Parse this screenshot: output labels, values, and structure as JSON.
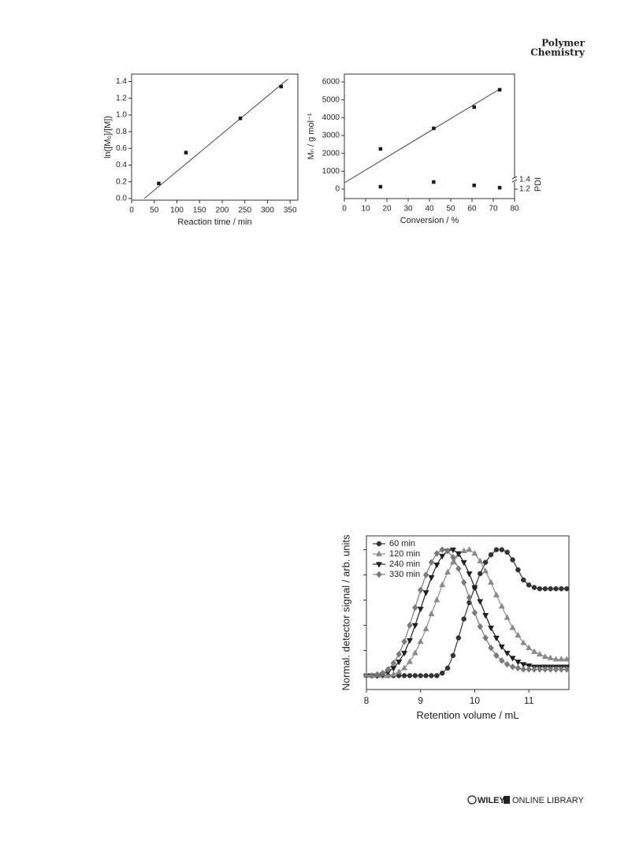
{
  "header": {
    "journal_line1": "Polymer",
    "journal_line2": "Chemistry"
  },
  "footer": {
    "publisher": "WILEY",
    "library": "ONLINE LIBRARY"
  },
  "chart_data": [
    {
      "type": "scatter",
      "xlabel": "Reaction time / min",
      "ylabel": "ln([M₀]/[M])",
      "xlim": [
        0,
        367
      ],
      "ylim": [
        -0.02,
        1.49
      ],
      "xticks": [
        0,
        50,
        100,
        150,
        200,
        250,
        300,
        350
      ],
      "yticks": [
        {
          "value": 0,
          "label": "0.0"
        },
        0.2,
        0.4,
        0.6,
        0.8,
        {
          "value": 1,
          "label": "1.0"
        },
        1.2,
        1.4
      ],
      "series": [
        {
          "color": "#1a1a1a",
          "marker": "square",
          "x": [
            60,
            120,
            240,
            330
          ],
          "values": [
            0.18,
            0.55,
            0.96,
            1.34
          ]
        }
      ],
      "fit_line": {
        "color": "#555555",
        "x": [
          28,
          345
        ],
        "values": [
          0,
          1.43
        ]
      }
    },
    {
      "type": "scatter",
      "xlabel": "Conversion / %",
      "ylabel": "Mₙ / g mol⁻¹",
      "y2label": "PDI",
      "xlim": [
        0,
        80
      ],
      "ylim": [
        -530,
        6440
      ],
      "y2lim": [
        1.0,
        3.63
      ],
      "xticks": [
        0,
        10,
        20,
        30,
        40,
        50,
        60,
        70,
        80
      ],
      "yticks": [
        0,
        1000,
        2000,
        3000,
        4000,
        5000,
        6000
      ],
      "y2ticks": [
        1.2,
        1.4
      ],
      "series": [
        {
          "color": "#1a1a1a",
          "marker": "square",
          "x": [
            17,
            42,
            61,
            73
          ],
          "values": [
            2250,
            3400,
            4590,
            5560
          ]
        },
        {
          "color": "#1a1a1a",
          "marker": "square",
          "axis": "y2",
          "x": [
            17,
            42,
            61,
            73
          ],
          "values": [
            1.25,
            1.35,
            1.28,
            1.23
          ]
        }
      ],
      "fit_line": {
        "color": "#555555",
        "x": [
          0,
          73
        ],
        "values": [
          350,
          5600
        ]
      }
    },
    {
      "type": "line",
      "xlabel": "Retention volume / mL",
      "ylabel": "Normal. detector signal / arb. units",
      "xlim": [
        8,
        11.74
      ],
      "ylim": [
        -0.11,
        1.11
      ],
      "xticks": [
        8,
        9,
        10,
        11
      ],
      "yticks": [
        0,
        0.2,
        0.4,
        0.6,
        0.8,
        1
      ],
      "ytick_labels": false,
      "legend": "upper left",
      "x": [
        8.0,
        8.1,
        8.2,
        8.3,
        8.4,
        8.5,
        8.6,
        8.7,
        8.8,
        8.9,
        9.0,
        9.1,
        9.2,
        9.3,
        9.4,
        9.5,
        9.6,
        9.7,
        9.8,
        9.9,
        10.0,
        10.1,
        10.2,
        10.3,
        10.4,
        10.5,
        10.6,
        10.7,
        10.8,
        10.9,
        11.0,
        11.1,
        11.2,
        11.3,
        11.4,
        11.5,
        11.6,
        11.7
      ],
      "series": [
        {
          "name": "60 min",
          "color": "#333333",
          "marker": "circle",
          "values": [
            0,
            0,
            0,
            0,
            0,
            0,
            0,
            0,
            0,
            0,
            0,
            0,
            0,
            0,
            0.02,
            0.06,
            0.16,
            0.3,
            0.45,
            0.58,
            0.7,
            0.81,
            0.9,
            0.96,
            1.0,
            1.0,
            0.98,
            0.92,
            0.84,
            0.76,
            0.72,
            0.7,
            0.69,
            0.69,
            0.69,
            0.69,
            0.69,
            0.69
          ]
        },
        {
          "name": "120 min",
          "color": "#8a8a8a",
          "marker": "triangle-up",
          "values": [
            0,
            0,
            0,
            0,
            0,
            0.01,
            0.03,
            0.06,
            0.11,
            0.18,
            0.27,
            0.37,
            0.49,
            0.6,
            0.72,
            0.82,
            0.9,
            0.96,
            0.99,
            1.0,
            0.97,
            0.91,
            0.83,
            0.74,
            0.64,
            0.55,
            0.46,
            0.38,
            0.32,
            0.26,
            0.22,
            0.19,
            0.17,
            0.15,
            0.14,
            0.13,
            0.13,
            0.13
          ]
        },
        {
          "name": "240 min",
          "color": "#1f1f1f",
          "marker": "triangle-down",
          "values": [
            0,
            0,
            0,
            0.01,
            0.03,
            0.06,
            0.11,
            0.18,
            0.28,
            0.4,
            0.53,
            0.66,
            0.78,
            0.88,
            0.95,
            0.99,
            1.0,
            0.97,
            0.9,
            0.81,
            0.7,
            0.59,
            0.48,
            0.38,
            0.3,
            0.23,
            0.18,
            0.14,
            0.11,
            0.09,
            0.08,
            0.07,
            0.07,
            0.07,
            0.07,
            0.07,
            0.07,
            0.07
          ]
        },
        {
          "name": "330 min",
          "color": "#7a7a7a",
          "marker": "diamond",
          "values": [
            0,
            0,
            0.01,
            0.02,
            0.05,
            0.1,
            0.17,
            0.27,
            0.4,
            0.54,
            0.68,
            0.8,
            0.9,
            0.97,
            1.0,
            0.99,
            0.94,
            0.85,
            0.74,
            0.62,
            0.5,
            0.39,
            0.3,
            0.22,
            0.16,
            0.12,
            0.09,
            0.07,
            0.06,
            0.05,
            0.05,
            0.05,
            0.05,
            0.05,
            0.05,
            0.05,
            0.05,
            0.05
          ]
        }
      ]
    }
  ]
}
